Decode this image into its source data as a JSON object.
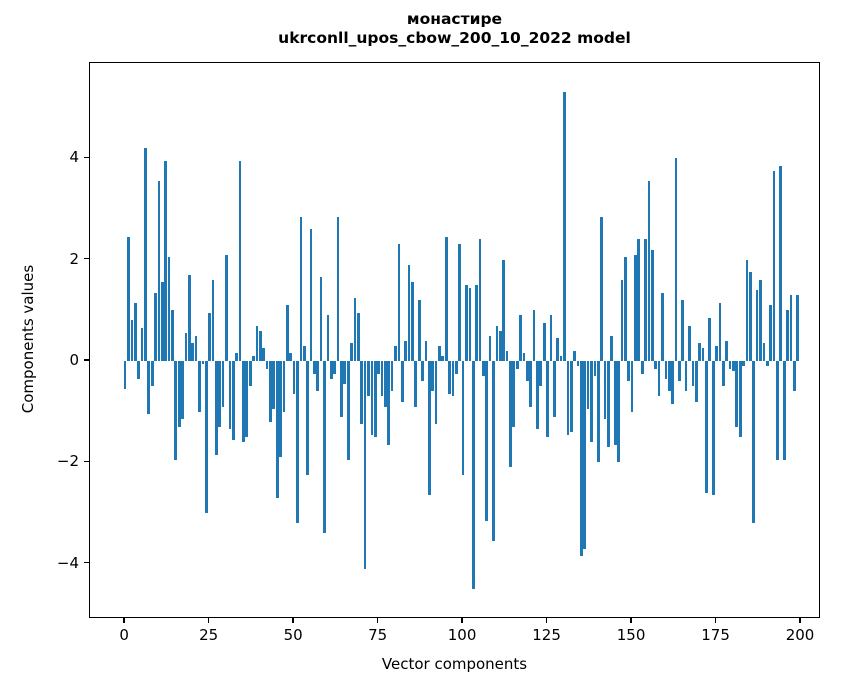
{
  "figure": {
    "title_line1": "монастире",
    "title_line2": "ukrconll_upos_cbow_200_10_2022 model",
    "xlabel": "Vector components",
    "ylabel": "Components values"
  },
  "chart_data": {
    "type": "bar",
    "title": "монастире",
    "subtitle": "ukrconll_upos_cbow_200_10_2022 model",
    "xlabel": "Vector components",
    "ylabel": "Components values",
    "legend": null,
    "grid": false,
    "bar_color": "#1f77b4",
    "n_components": 200,
    "x_ticks": [
      0,
      25,
      50,
      75,
      100,
      125,
      150,
      175,
      200
    ],
    "y_ticks": [
      -4,
      -2,
      0,
      2,
      4
    ],
    "xlim": [
      -10.4,
      205.9
    ],
    "ylim": [
      -5.09,
      5.88
    ],
    "values": [
      -0.55,
      2.45,
      0.8,
      1.15,
      -0.35,
      0.65,
      4.2,
      -1.05,
      -0.5,
      1.35,
      3.55,
      1.55,
      3.95,
      2.05,
      1.0,
      -1.95,
      -1.3,
      -1.15,
      0.55,
      1.7,
      0.35,
      0.5,
      -1.0,
      -0.05,
      -3.0,
      0.95,
      1.6,
      -1.85,
      -1.3,
      -0.9,
      2.1,
      -1.35,
      -1.55,
      0.15,
      3.95,
      -1.6,
      -1.5,
      -0.5,
      0.1,
      0.7,
      0.6,
      0.25,
      -0.15,
      -1.2,
      -0.95,
      -2.7,
      -1.9,
      -1.0,
      1.1,
      0.15,
      -0.65,
      -3.2,
      2.85,
      0.3,
      -2.25,
      2.6,
      -0.25,
      -0.6,
      1.65,
      -3.4,
      0.9,
      -0.35,
      -0.25,
      2.85,
      -1.1,
      -0.45,
      -1.95,
      0.35,
      1.25,
      0.95,
      -1.25,
      -4.1,
      -0.7,
      -1.45,
      -1.5,
      -0.25,
      -0.7,
      -0.9,
      -1.65,
      -0.6,
      0.3,
      2.3,
      -0.8,
      0.4,
      1.9,
      1.55,
      -0.9,
      1.2,
      -0.4,
      0.4,
      -2.65,
      -0.6,
      -1.25,
      0.3,
      0.1,
      2.45,
      -0.65,
      -0.7,
      -0.25,
      2.3,
      -2.25,
      1.5,
      1.45,
      -4.5,
      1.5,
      2.4,
      -0.3,
      -3.15,
      0.5,
      -3.55,
      0.7,
      0.6,
      2.0,
      0.2,
      -2.1,
      -1.3,
      -0.15,
      0.9,
      0.15,
      -0.4,
      -0.9,
      1.0,
      -1.35,
      -0.5,
      0.75,
      -1.5,
      0.9,
      -1.1,
      0.45,
      0.1,
      5.3,
      -1.45,
      -1.4,
      0.2,
      -0.1,
      -3.85,
      -3.7,
      -0.95,
      -1.6,
      -0.3,
      -2.0,
      2.85,
      -1.15,
      -1.7,
      0.5,
      -1.65,
      -2.0,
      1.6,
      2.05,
      -0.4,
      -1.0,
      2.1,
      2.4,
      -0.25,
      2.4,
      3.55,
      2.2,
      -0.15,
      -0.7,
      1.35,
      -0.35,
      -0.6,
      -0.85,
      4.0,
      -0.4,
      1.2,
      -0.6,
      0.7,
      -0.5,
      -0.8,
      0.35,
      0.25,
      -2.6,
      0.85,
      -2.65,
      0.3,
      1.15,
      -0.5,
      0.4,
      -0.15,
      -0.2,
      -1.3,
      -1.5,
      -0.1,
      2.0,
      1.75,
      -3.2,
      1.4,
      1.6,
      0.35,
      -0.1,
      1.1,
      3.75,
      -1.95,
      3.85,
      -1.95,
      1.0,
      1.3,
      -0.6,
      1.3
    ]
  }
}
